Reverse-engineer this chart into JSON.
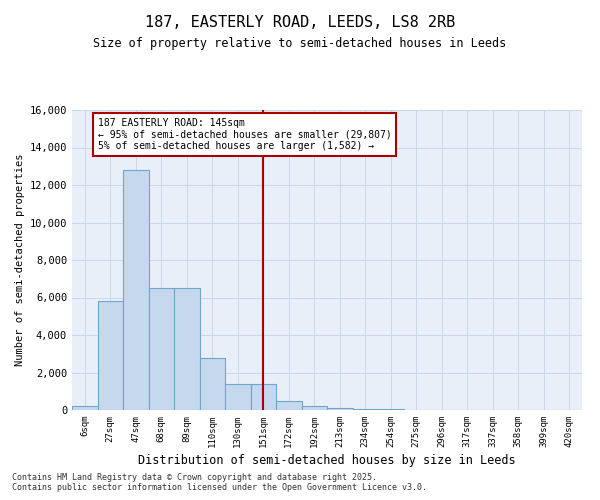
{
  "title1": "187, EASTERLY ROAD, LEEDS, LS8 2RB",
  "title2": "Size of property relative to semi-detached houses in Leeds",
  "xlabel": "Distribution of semi-detached houses by size in Leeds",
  "ylabel": "Number of semi-detached properties",
  "categories": [
    "6sqm",
    "27sqm",
    "47sqm",
    "68sqm",
    "89sqm",
    "110sqm",
    "130sqm",
    "151sqm",
    "172sqm",
    "192sqm",
    "213sqm",
    "234sqm",
    "254sqm",
    "275sqm",
    "296sqm",
    "317sqm",
    "337sqm",
    "358sqm",
    "399sqm",
    "420sqm"
  ],
  "values": [
    200,
    5800,
    12800,
    6500,
    6500,
    2800,
    1400,
    1400,
    500,
    220,
    130,
    80,
    30,
    0,
    0,
    0,
    0,
    0,
    0,
    0
  ],
  "bar_color": "#c5d8ee",
  "bar_edge_color": "#6ea6cc",
  "vline_index": 7,
  "vline_color": "#aa0000",
  "annotation_text": "187 EASTERLY ROAD: 145sqm\n← 95% of semi-detached houses are smaller (29,807)\n5% of semi-detached houses are larger (1,582) →",
  "annotation_box_color": "#ffffff",
  "annotation_box_edge": "#aa0000",
  "ylim": [
    0,
    16000
  ],
  "yticks": [
    0,
    2000,
    4000,
    6000,
    8000,
    10000,
    12000,
    14000,
    16000
  ],
  "grid_color": "#c8d8e8",
  "background_color": "#e8eff8",
  "footer1": "Contains HM Land Registry data © Crown copyright and database right 2025.",
  "footer2": "Contains public sector information licensed under the Open Government Licence v3.0."
}
